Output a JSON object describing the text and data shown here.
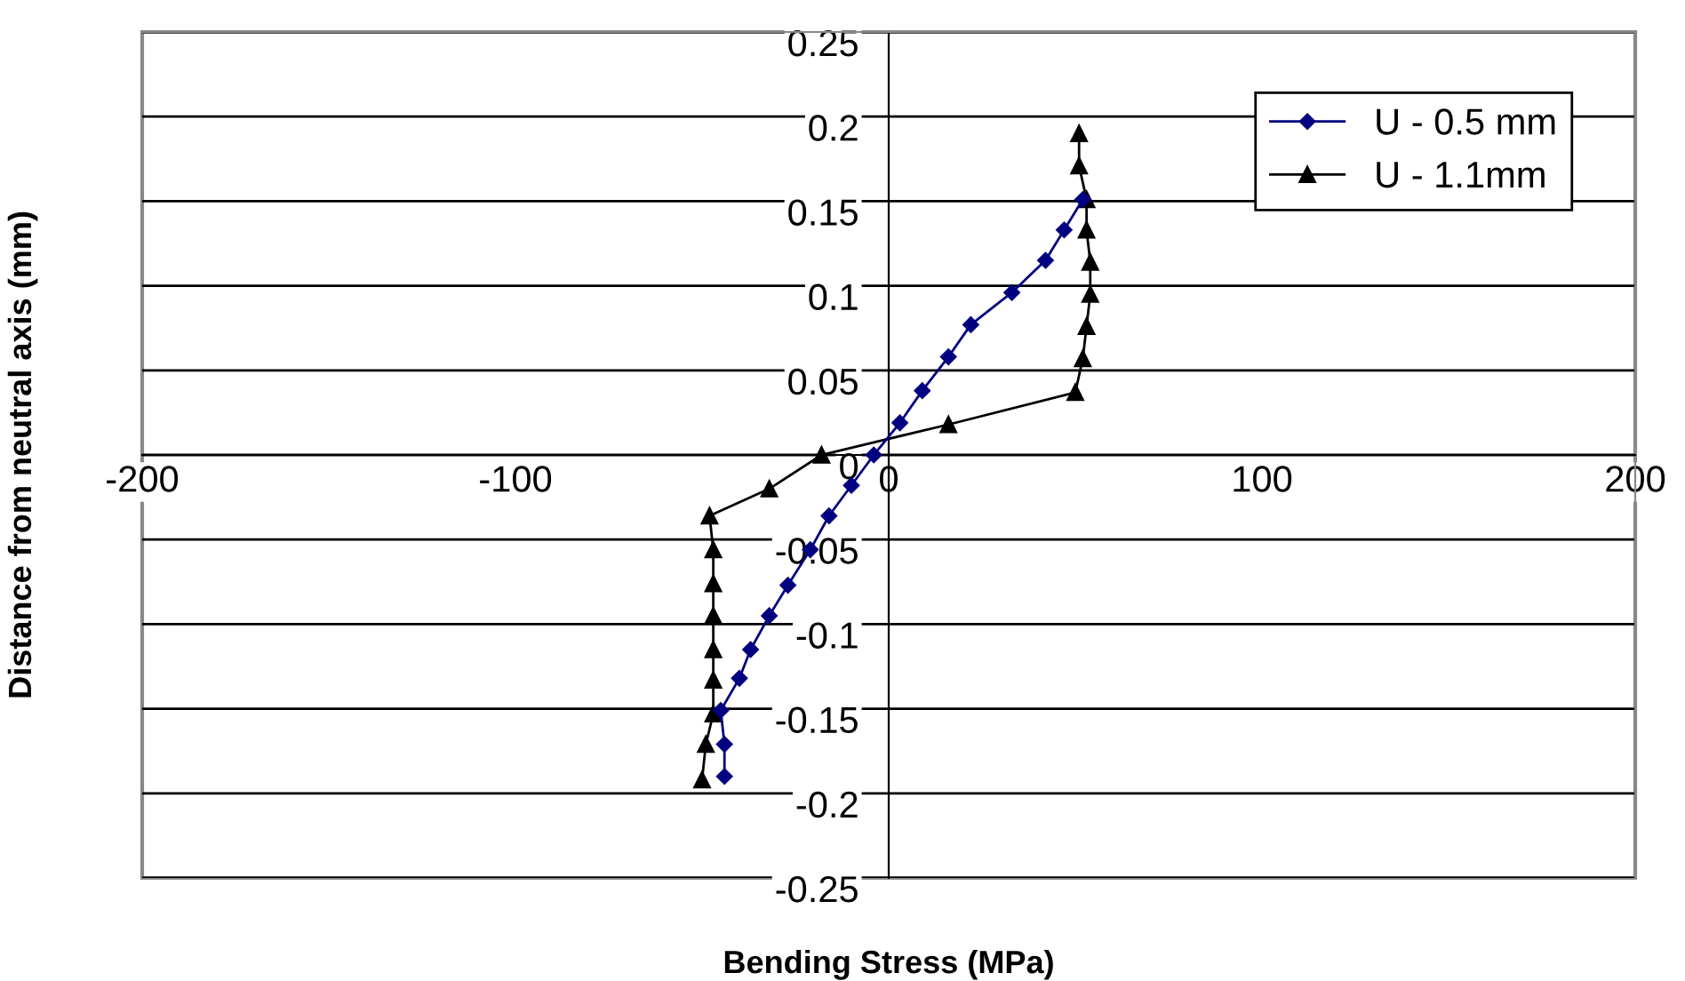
{
  "chart_data": {
    "type": "line",
    "xlabel": "Bending Stress (MPa)",
    "ylabel": "Distance from neutral axis (mm)",
    "xlim": [
      -200,
      200
    ],
    "xticks": [
      -200,
      -100,
      0,
      100,
      200
    ],
    "ylim": [
      -0.25,
      0.25
    ],
    "yticks": [
      -0.25,
      -0.2,
      -0.15,
      -0.1,
      -0.05,
      0,
      0.05,
      0.1,
      0.15,
      0.2,
      0.25
    ],
    "grid": "y",
    "legend": "top right",
    "series": [
      {
        "name": "U - 0.5 mm",
        "color": "#000080",
        "marker": "diamond",
        "x": [
          52,
          47,
          42,
          33,
          22,
          16,
          9,
          3,
          -4,
          -10,
          -16,
          -21,
          -27,
          -32,
          -37,
          -40,
          -45,
          -44,
          -44
        ],
        "values": [
          0.151,
          0.133,
          0.115,
          0.096,
          0.077,
          0.058,
          0.038,
          0.019,
          0,
          -0.018,
          -0.036,
          -0.056,
          -0.077,
          -0.095,
          -0.115,
          -0.132,
          -0.151,
          -0.171,
          -0.19
        ]
      },
      {
        "name": "U - 1.1mm",
        "color": "#000000",
        "marker": "triangle",
        "x": [
          51,
          51,
          53,
          53,
          54,
          54,
          53,
          52,
          50,
          16,
          -18,
          -32,
          -48,
          -47,
          -47,
          -47,
          -47,
          -47,
          -47,
          -49,
          -50
        ],
        "values": [
          0.19,
          0.171,
          0.151,
          0.133,
          0.114,
          0.095,
          0.076,
          0.057,
          0.037,
          0.018,
          0,
          -0.02,
          -0.036,
          -0.056,
          -0.076,
          -0.095,
          -0.115,
          -0.133,
          -0.153,
          -0.171,
          -0.192
        ]
      }
    ]
  }
}
